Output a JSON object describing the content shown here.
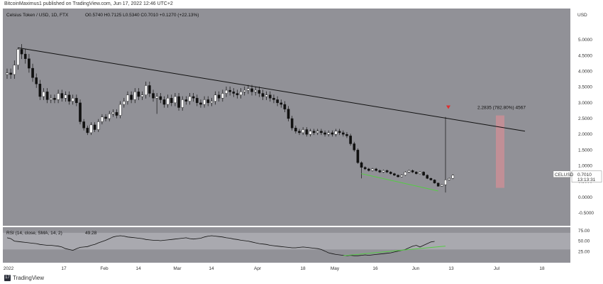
{
  "header": {
    "text": "BitcoinMaximus1 published on TradingView.com, Jun 17, 2022 12:46 UTC+2"
  },
  "footer": {
    "brand": "TradingView"
  },
  "chart_data": [
    {
      "type": "candlestick",
      "title": "Celsius Token / USD, 1D, FTX",
      "ohlc_text": "O0.5740 H0.7125 L0.5340 C0.7010 +0.1270 (+22.13%)",
      "currency": "USD",
      "symbol": "CELUSD",
      "last_price": "0.7010",
      "countdown": "13:13:31",
      "ylim": [
        -0.5,
        5.5
      ],
      "y_ticks": [
        "5.0000",
        "4.5000",
        "4.0000",
        "3.5000",
        "3.0000",
        "2.5000",
        "2.0000",
        "1.5000",
        "1.0000",
        "0.5000",
        "0.0000",
        "-0.5000"
      ],
      "x_ticks": [
        "2022",
        "17",
        "Feb",
        "14",
        "Mar",
        "14",
        "Apr",
        "18",
        "May",
        "16",
        "Jun",
        "13",
        "Jul",
        "18"
      ],
      "close_series": [
        3.95,
        3.9,
        4.2,
        4.7,
        4.55,
        4.4,
        4.1,
        3.8,
        3.6,
        3.2,
        3.35,
        3.1,
        3.15,
        3.1,
        3.3,
        3.15,
        3.25,
        3.05,
        3.15,
        3.0,
        2.4,
        2.2,
        2.05,
        2.3,
        2.15,
        2.4,
        2.55,
        2.5,
        2.65,
        2.7,
        2.6,
        2.95,
        3.05,
        3.25,
        3.1,
        3.35,
        3.2,
        3.25,
        3.55,
        3.3,
        3.15,
        3.2,
        3.1,
        2.95,
        3.15,
        3.0,
        3.2,
        2.85,
        3.1,
        3.05,
        3.2,
        3.15,
        3.0,
        2.95,
        3.1,
        3.0,
        3.05,
        3.25,
        3.15,
        3.3,
        3.4,
        3.35,
        3.3,
        3.25,
        3.35,
        3.4,
        3.45,
        3.35,
        3.4,
        3.3,
        3.2,
        3.25,
        3.15,
        3.1,
        3.0,
        2.95,
        2.8,
        2.5,
        2.2,
        2.1,
        2.05,
        2.15,
        2.0,
        2.1,
        2.05,
        2.1,
        2.05,
        2.0,
        2.05,
        2.0,
        2.1,
        2.05,
        2.0,
        1.95,
        1.7,
        1.5,
        1.1,
        0.95,
        0.9,
        0.85,
        0.9,
        0.85,
        0.8,
        0.85,
        0.8,
        0.75,
        0.7,
        0.65,
        0.7,
        0.8,
        0.85,
        0.8,
        0.75,
        0.8,
        0.7,
        0.6,
        0.55,
        0.45,
        0.35,
        0.4,
        0.55,
        0.6,
        0.7
      ],
      "annotation": {
        "text": "2.2835 (782.80%) 4567"
      },
      "rsi": {
        "label": "RSI (14, close, SMA, 14, 2)",
        "value": "49.28",
        "ylim": [
          0,
          80
        ],
        "ticks": [
          "75.00",
          "50.00",
          "25.00"
        ],
        "series": [
          58,
          56,
          50,
          49,
          48,
          47,
          46,
          45,
          44,
          42,
          41,
          40,
          40,
          39,
          38,
          36,
          32,
          30,
          28,
          32,
          35,
          36,
          37,
          40,
          42,
          46,
          49,
          52,
          56,
          60,
          62,
          63,
          62,
          60,
          59,
          58,
          57,
          56,
          54,
          53,
          52,
          52,
          51,
          52,
          53,
          54,
          55,
          56,
          57,
          58,
          56,
          55,
          56,
          57,
          60,
          62,
          63,
          62,
          61,
          60,
          58,
          57,
          55,
          54,
          52,
          51,
          50,
          48,
          46,
          44,
          43,
          42,
          40,
          39,
          38,
          37,
          36,
          35,
          34,
          34,
          35,
          36,
          35,
          34,
          33,
          32,
          30,
          26,
          22,
          20,
          18,
          17,
          16,
          15,
          16,
          15,
          15,
          16,
          17,
          16,
          17,
          18,
          19,
          20,
          21,
          22,
          24,
          26,
          28,
          30,
          34,
          38,
          40,
          36,
          40,
          44,
          48,
          49.28
        ]
      }
    }
  ],
  "colors": {
    "pane_bg": "#919197",
    "rsi_band": "#a9a9af",
    "axis_bg": "#ffffff",
    "candle_up": "#ffffff",
    "candle_down": "#111111",
    "trendline": "#111111",
    "divergence": "#55cc44",
    "target_box": "#c98e95",
    "marker": "#e03030",
    "price_tag": "#ffffff"
  }
}
